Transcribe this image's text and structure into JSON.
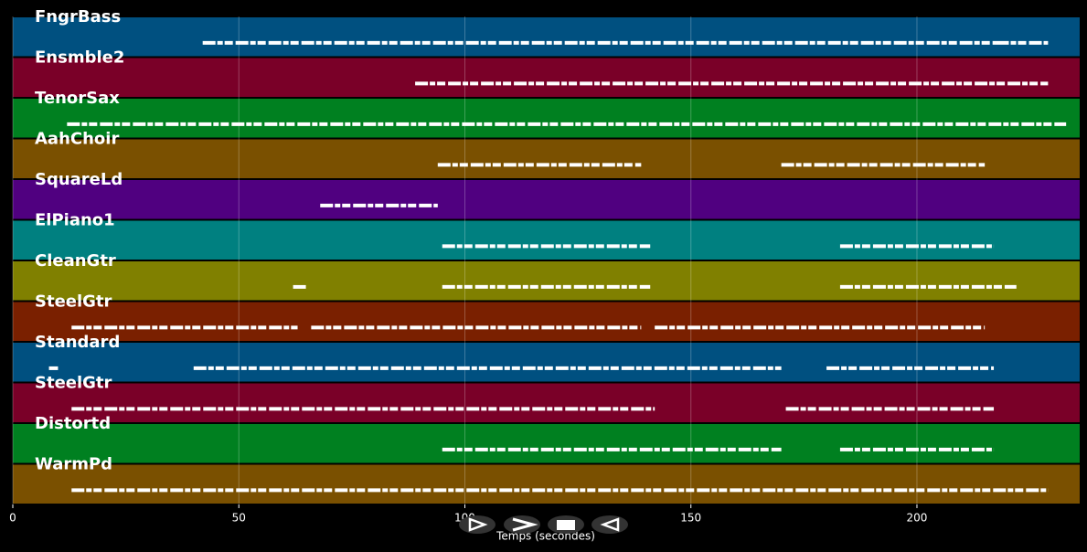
{
  "chart_data": {
    "type": "pianoroll",
    "x_label": "Temps (secondes)",
    "xlim": [
      0,
      236
    ],
    "xticks": [
      0,
      50,
      100,
      150,
      200
    ],
    "grid": true,
    "tracks": [
      {
        "name": "FngrBass",
        "color": "#005080",
        "spans": [
          [
            42,
            217.5
          ],
          [
            217.5,
            229
          ]
        ]
      },
      {
        "name": "Ensmble2",
        "color": "#7a0028",
        "spans": [
          [
            89,
            229
          ]
        ]
      },
      {
        "name": "TenorSax",
        "color": "#008020",
        "spans": [
          [
            12,
            233
          ]
        ]
      },
      {
        "name": "AahChoir",
        "color": "#7a5000",
        "spans": [
          [
            94,
            139
          ],
          [
            170,
            215
          ]
        ]
      },
      {
        "name": "SquareLd",
        "color": "#500080",
        "spans": [
          [
            68,
            94
          ]
        ]
      },
      {
        "name": "ElPiano1",
        "color": "#008080",
        "spans": [
          [
            95,
            141
          ],
          [
            183,
            217
          ]
        ]
      },
      {
        "name": "CleanGtr",
        "color": "#808000",
        "spans": [
          [
            62,
            65
          ],
          [
            95,
            141
          ],
          [
            183,
            222
          ]
        ]
      },
      {
        "name": "SteelGtr",
        "color": "#7a2000",
        "spans": [
          [
            13,
            63
          ],
          [
            66,
            139
          ],
          [
            142,
            215
          ]
        ]
      },
      {
        "name": "Standard",
        "color": "#005080",
        "spans": [
          [
            8,
            10
          ],
          [
            40,
            170
          ],
          [
            180,
            217
          ]
        ]
      },
      {
        "name": "SteelGtr",
        "color": "#7a0028",
        "spans": [
          [
            13,
            142
          ],
          [
            171,
            217
          ]
        ]
      },
      {
        "name": "Distortd",
        "color": "#008020",
        "spans": [
          [
            95,
            170
          ],
          [
            183,
            217
          ]
        ]
      },
      {
        "name": "WarmPd",
        "color": "#7a5000",
        "spans": [
          [
            13,
            229
          ]
        ]
      }
    ]
  }
}
